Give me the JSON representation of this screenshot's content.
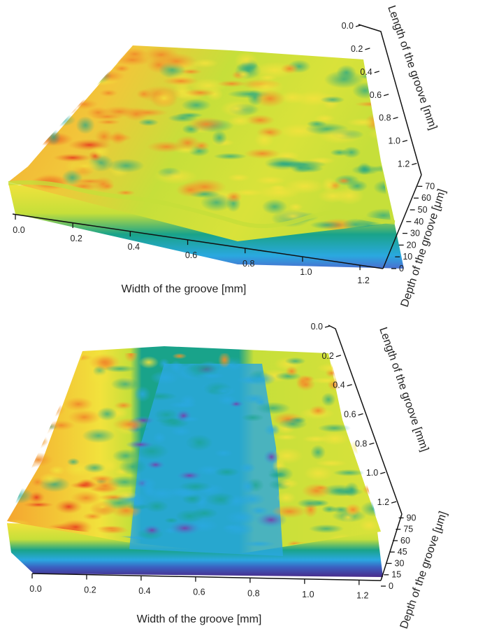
{
  "chart_data": [
    {
      "type": "surface",
      "xlabel": "Width of the groove [mm]",
      "ylabel": "Length of the groove [mm]",
      "zlabel": "Depth of the groove [μm]",
      "x_ticks": [
        "0.0",
        "0.2",
        "0.4",
        "0.6",
        "0.8",
        "1.0",
        "1.2"
      ],
      "y_ticks": [
        "0.0",
        "0.2",
        "0.4",
        "0.6",
        "0.8",
        "1.0",
        "1.2"
      ],
      "z_ticks": [
        "0",
        "10",
        "20",
        "30",
        "40",
        "50",
        "60",
        "70"
      ],
      "xlim": [
        0,
        1.28
      ],
      "ylim": [
        0,
        1.3
      ],
      "zlim": [
        0,
        75
      ],
      "groove": null,
      "colors": [
        "#4a2a8a",
        "#2aa8e0",
        "#19a38a",
        "#c6df3a",
        "#f2e23c",
        "#f4a530",
        "#e8401f"
      ]
    },
    {
      "type": "surface",
      "xlabel": "Width of the groove [mm]",
      "ylabel": "Length of the groove [mm]",
      "zlabel": "Depth of the groove [μm]",
      "x_ticks": [
        "0.0",
        "0.2",
        "0.4",
        "0.6",
        "0.8",
        "1.0",
        "1.2"
      ],
      "y_ticks": [
        "0.0",
        "0.2",
        "0.4",
        "0.6",
        "0.8",
        "1.0",
        "1.2"
      ],
      "z_ticks": [
        "0",
        "15",
        "30",
        "45",
        "60",
        "75",
        "90"
      ],
      "xlim": [
        0,
        1.28
      ],
      "ylim": [
        0,
        1.3
      ],
      "zlim": [
        0,
        95
      ],
      "groove": {
        "x_start": 0.42,
        "x_end": 0.88,
        "depth": 40
      },
      "colors": [
        "#4a2a8a",
        "#2aa8e0",
        "#19a38a",
        "#c6df3a",
        "#f2e23c",
        "#f4a530",
        "#e8401f"
      ]
    }
  ]
}
